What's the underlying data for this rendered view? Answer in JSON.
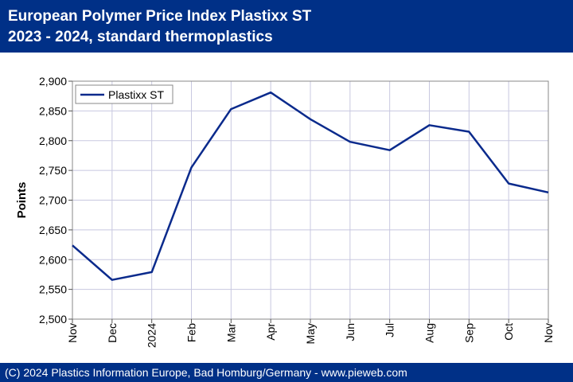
{
  "header": {
    "title_line1": "European Polymer Price Index Plastixx ST",
    "title_line2": "2023 - 2024, standard thermoplastics"
  },
  "footer": {
    "copyright": "(C) 2024 Plastics Information Europe, Bad Homburg/Germany - www.pieweb.com"
  },
  "colors": {
    "brand": "#003087",
    "series": "#0a2a8c",
    "grid": "#c8c8e0"
  },
  "chart_data": {
    "type": "line",
    "title": "",
    "xlabel": "",
    "ylabel": "Points",
    "ylim": [
      2500,
      2900
    ],
    "yticks": [
      2500,
      2550,
      2600,
      2650,
      2700,
      2750,
      2800,
      2850,
      2900
    ],
    "ytick_labels": [
      "2,500",
      "2,550",
      "2,600",
      "2,650",
      "2,700",
      "2,750",
      "2,800",
      "2,850",
      "2,900"
    ],
    "categories": [
      "Nov",
      "Dec",
      "2024",
      "Feb",
      "Mar",
      "Apr",
      "May",
      "Jun",
      "Jul",
      "Aug",
      "Sep",
      "Oct",
      "Nov"
    ],
    "grid": true,
    "legend_position": "top-left",
    "series": [
      {
        "name": "Plastixx ST",
        "values": [
          2624,
          2566,
          2579,
          2755,
          2853,
          2881,
          2836,
          2798,
          2784,
          2826,
          2815,
          2728,
          2713
        ]
      }
    ]
  }
}
